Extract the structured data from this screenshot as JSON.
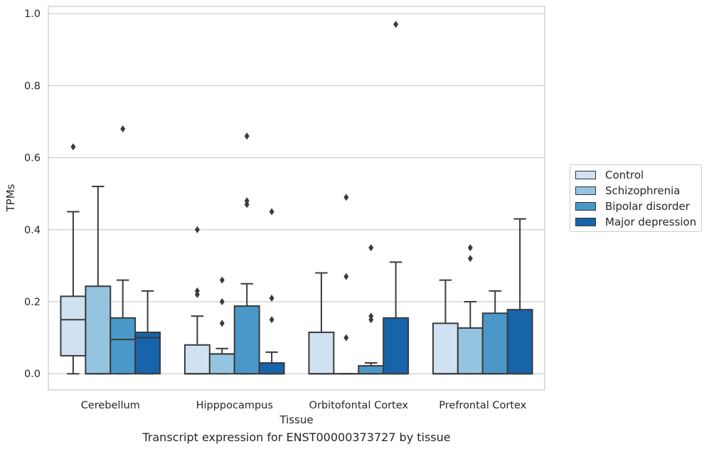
{
  "chart_data": {
    "type": "boxplot",
    "title": "",
    "xlabel": "Tissue",
    "ylabel": "TPMs",
    "caption": "Transcript expression for ENST00000373727 by tissue",
    "ylim": [
      -0.045,
      1.02
    ],
    "yticks": [
      "0.0",
      "0.2",
      "0.4",
      "0.6",
      "0.8",
      "1.0"
    ],
    "grid": "horizontal",
    "legend_position": "right",
    "categories": [
      "Cerebellum",
      "Hipppocampus",
      "Orbitofontal Cortex",
      "Prefrontal Cortex"
    ],
    "series": [
      {
        "name": "Control",
        "color": "#d0e1f2",
        "boxes": [
          {
            "whislo": 0.0,
            "q1": 0.05,
            "median": 0.15,
            "q3": 0.215,
            "whishi": 0.45,
            "fliers": [
              0.63
            ]
          },
          {
            "whislo": 0.0,
            "q1": 0.0,
            "median": 0.0,
            "q3": 0.08,
            "whishi": 0.16,
            "fliers": [
              0.22,
              0.23,
              0.4
            ]
          },
          {
            "whislo": 0.0,
            "q1": 0.0,
            "median": 0.0,
            "q3": 0.115,
            "whishi": 0.28,
            "fliers": []
          },
          {
            "whislo": 0.0,
            "q1": 0.0,
            "median": 0.0,
            "q3": 0.14,
            "whishi": 0.26,
            "fliers": []
          }
        ]
      },
      {
        "name": "Schizophrenia",
        "color": "#94c4df",
        "boxes": [
          {
            "whislo": 0.0,
            "q1": 0.0,
            "median": 0.0,
            "q3": 0.243,
            "whishi": 0.52,
            "fliers": []
          },
          {
            "whislo": 0.0,
            "q1": 0.0,
            "median": 0.055,
            "q3": 0.055,
            "whishi": 0.07,
            "fliers": [
              0.14,
              0.2,
              0.26
            ]
          },
          {
            "whislo": 0.0,
            "q1": 0.0,
            "median": 0.0,
            "q3": 0.0,
            "whishi": 0.0,
            "fliers": [
              0.1,
              0.27,
              0.49
            ]
          },
          {
            "whislo": 0.0,
            "q1": 0.0,
            "median": 0.0,
            "q3": 0.127,
            "whishi": 0.2,
            "fliers": [
              0.32,
              0.35
            ]
          }
        ]
      },
      {
        "name": "Bipolar disorder",
        "color": "#4a98c9",
        "boxes": [
          {
            "whislo": 0.0,
            "q1": 0.0,
            "median": 0.095,
            "q3": 0.155,
            "whishi": 0.26,
            "fliers": [
              0.68
            ]
          },
          {
            "whislo": 0.0,
            "q1": 0.0,
            "median": 0.0,
            "q3": 0.188,
            "whishi": 0.25,
            "fliers": [
              0.47,
              0.48,
              0.66
            ]
          },
          {
            "whislo": 0.0,
            "q1": 0.0,
            "median": 0.0,
            "q3": 0.022,
            "whishi": 0.03,
            "fliers": [
              0.15,
              0.16,
              0.35
            ]
          },
          {
            "whislo": 0.0,
            "q1": 0.0,
            "median": 0.0,
            "q3": 0.168,
            "whishi": 0.23,
            "fliers": []
          }
        ]
      },
      {
        "name": "Major depression",
        "color": "#1764ab",
        "boxes": [
          {
            "whislo": 0.0,
            "q1": 0.0,
            "median": 0.1,
            "q3": 0.115,
            "whishi": 0.23,
            "fliers": []
          },
          {
            "whislo": 0.0,
            "q1": 0.0,
            "median": 0.0,
            "q3": 0.03,
            "whishi": 0.06,
            "fliers": [
              0.15,
              0.21,
              0.45
            ]
          },
          {
            "whislo": 0.0,
            "q1": 0.0,
            "median": 0.0,
            "q3": 0.155,
            "whishi": 0.31,
            "fliers": [
              0.97
            ]
          },
          {
            "whislo": 0.0,
            "q1": 0.0,
            "median": 0.0,
            "q3": 0.178,
            "whishi": 0.43,
            "fliers": []
          }
        ]
      }
    ]
  }
}
